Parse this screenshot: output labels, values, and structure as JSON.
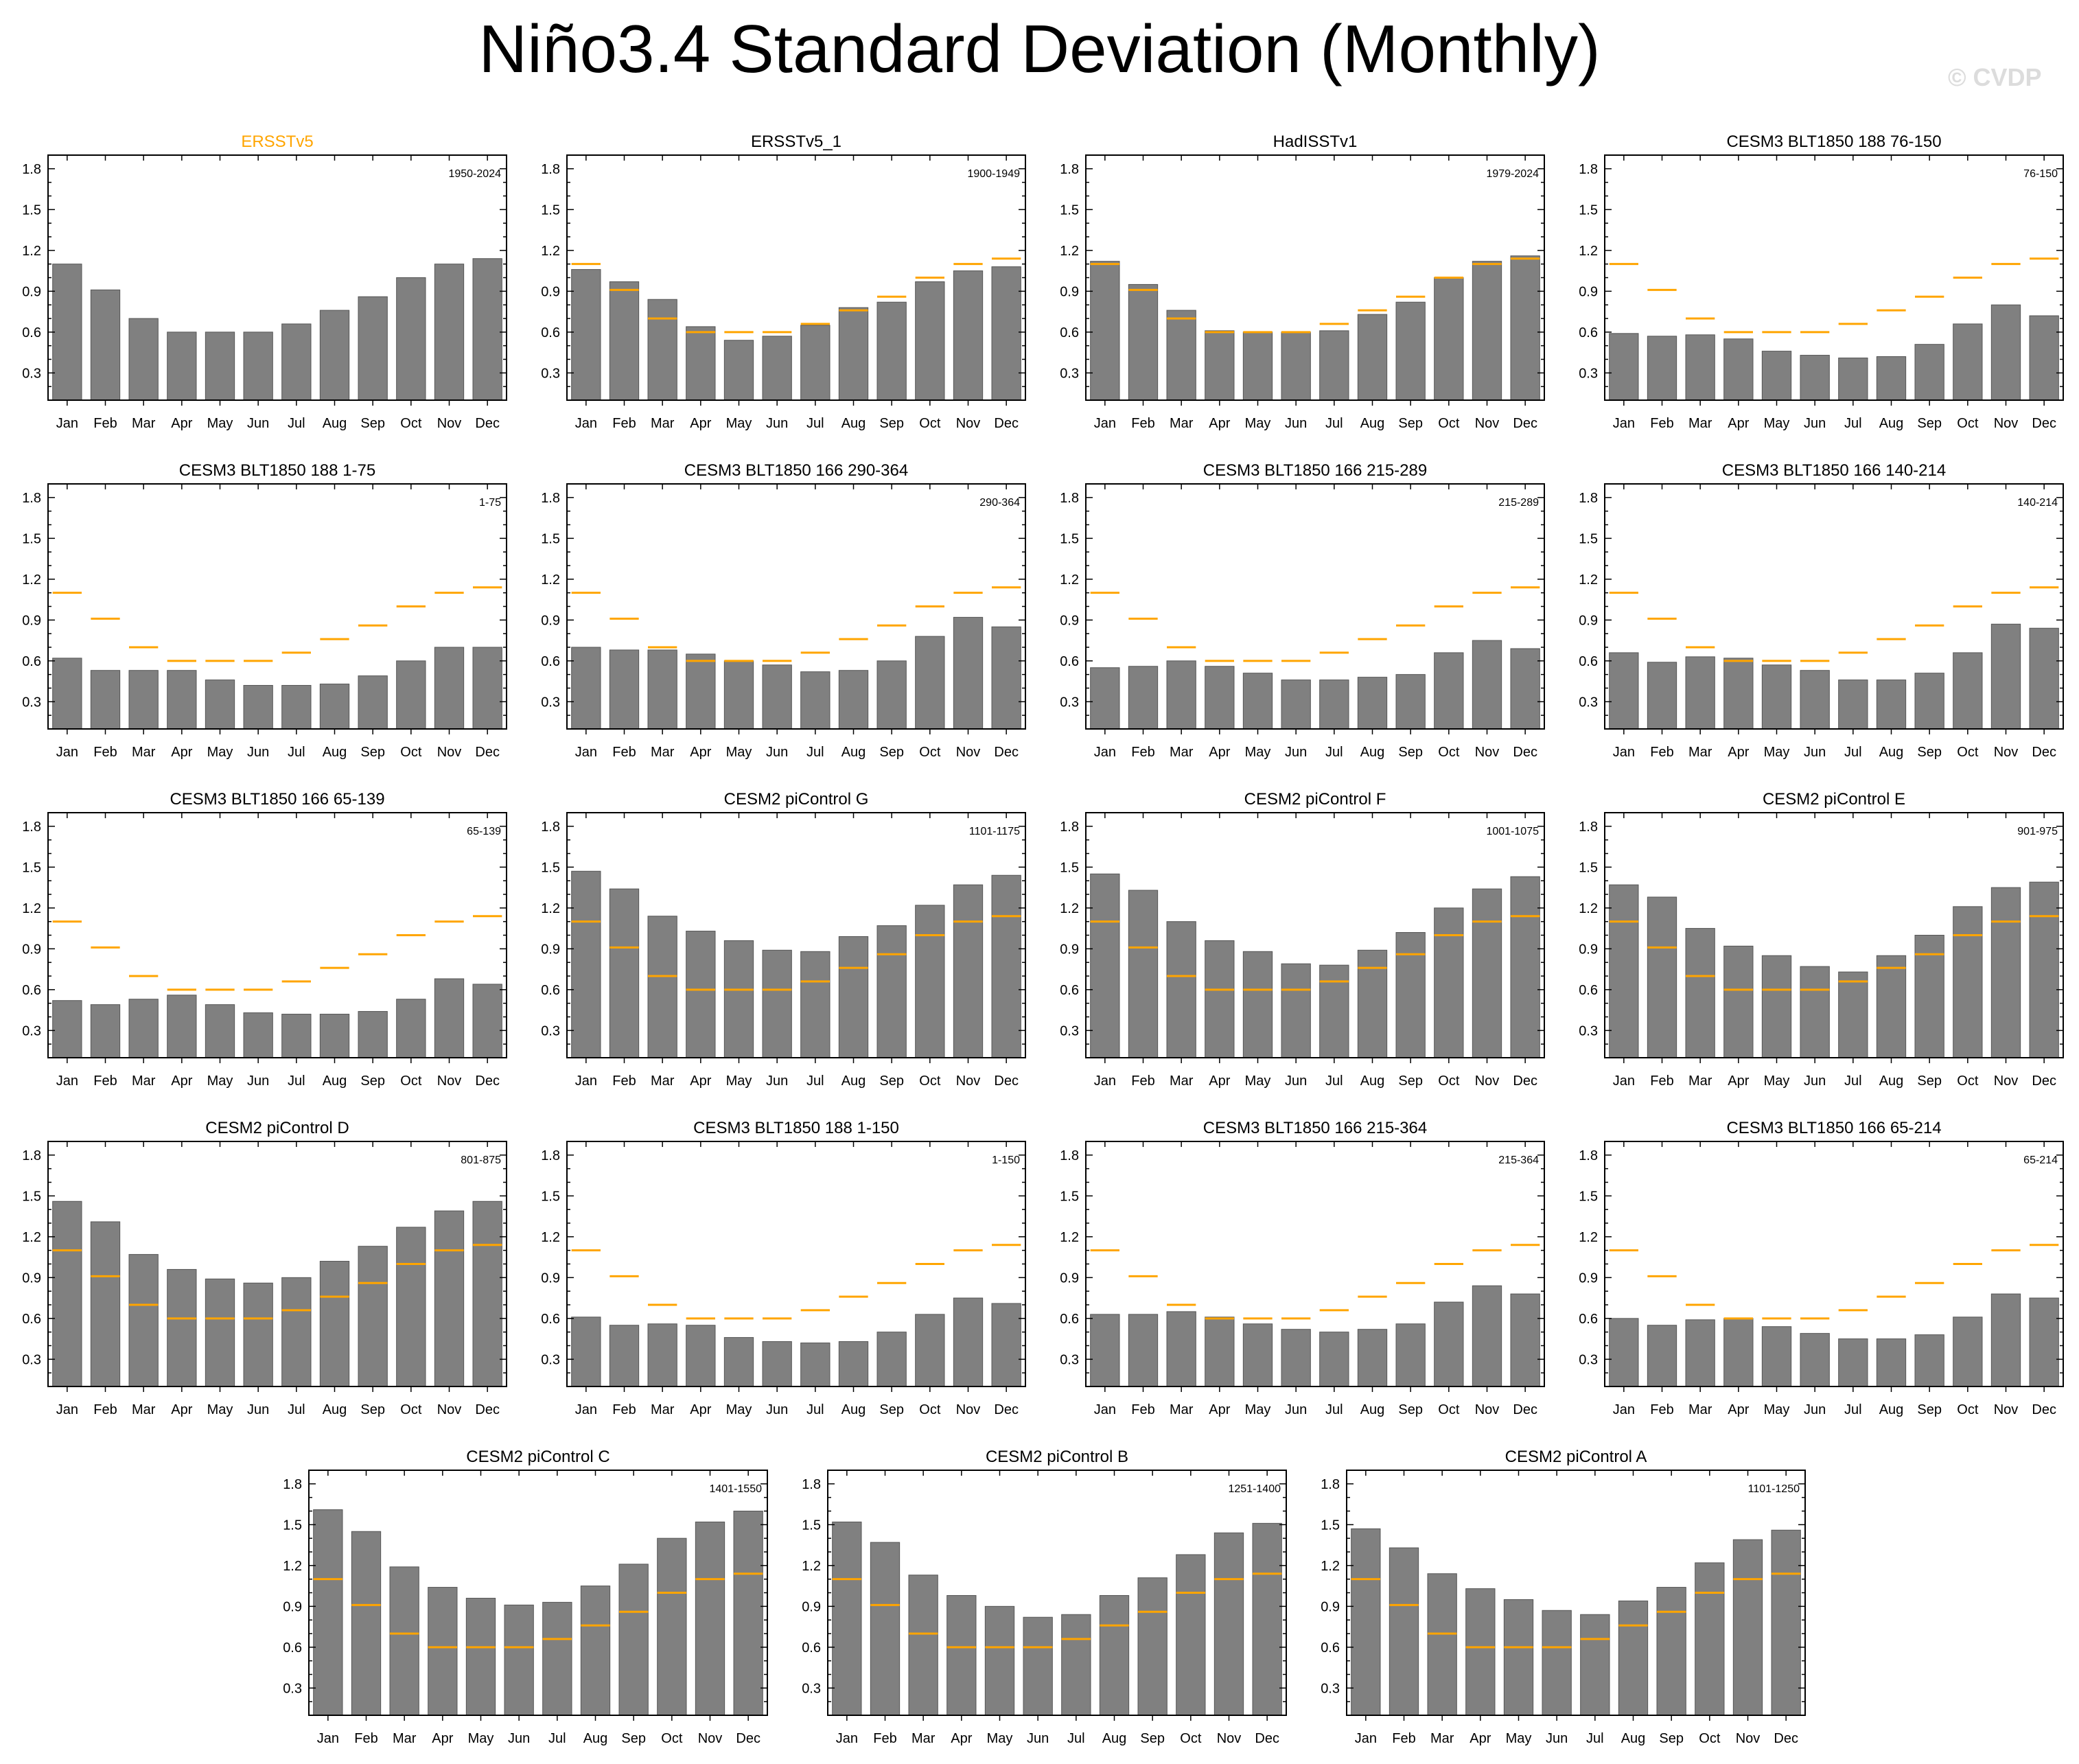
{
  "title": "Niño3.4 Standard Deviation (Monthly)",
  "watermark": "© CVDP",
  "colors": {
    "bar": "#808080",
    "bar_edge": "#555555",
    "obs_line": "#ffa500",
    "obs_title": "#ffa500",
    "text": "#000000"
  },
  "chart_data": [
    {
      "type": "bar",
      "title": "ERSSTv5",
      "subtitle": "1950-2024",
      "title_color": "obs",
      "categories": [
        "Jan",
        "Feb",
        "Mar",
        "Apr",
        "May",
        "Jun",
        "Jul",
        "Aug",
        "Sep",
        "Oct",
        "Nov",
        "Dec"
      ],
      "values": [
        1.1,
        0.91,
        0.7,
        0.6,
        0.6,
        0.6,
        0.66,
        0.76,
        0.86,
        1.0,
        1.1,
        1.14
      ],
      "reference": [],
      "yticks": [
        "0.3",
        "0.6",
        "0.9",
        "1.2",
        "1.5",
        "1.8"
      ],
      "ylim": [
        0.1,
        1.9
      ]
    },
    {
      "type": "bar",
      "title": "ERSSTv5_1",
      "subtitle": "1900-1949",
      "categories": [
        "Jan",
        "Feb",
        "Mar",
        "Apr",
        "May",
        "Jun",
        "Jul",
        "Aug",
        "Sep",
        "Oct",
        "Nov",
        "Dec"
      ],
      "values": [
        1.06,
        0.97,
        0.84,
        0.64,
        0.54,
        0.57,
        0.65,
        0.78,
        0.82,
        0.97,
        1.05,
        1.08
      ],
      "reference": [
        1.1,
        0.91,
        0.7,
        0.6,
        0.6,
        0.6,
        0.66,
        0.76,
        0.86,
        1.0,
        1.1,
        1.14
      ],
      "yticks": [
        "0.3",
        "0.6",
        "0.9",
        "1.2",
        "1.5",
        "1.8"
      ],
      "ylim": [
        0.1,
        1.9
      ]
    },
    {
      "type": "bar",
      "title": "HadISSTv1",
      "subtitle": "1979-2024",
      "categories": [
        "Jan",
        "Feb",
        "Mar",
        "Apr",
        "May",
        "Jun",
        "Jul",
        "Aug",
        "Sep",
        "Oct",
        "Nov",
        "Dec"
      ],
      "values": [
        1.12,
        0.95,
        0.76,
        0.61,
        0.6,
        0.6,
        0.61,
        0.73,
        0.82,
        1.0,
        1.12,
        1.16
      ],
      "reference": [
        1.1,
        0.91,
        0.7,
        0.6,
        0.6,
        0.6,
        0.66,
        0.76,
        0.86,
        1.0,
        1.1,
        1.14
      ],
      "yticks": [
        "0.3",
        "0.6",
        "0.9",
        "1.2",
        "1.5",
        "1.8"
      ],
      "ylim": [
        0.1,
        1.9
      ]
    },
    {
      "type": "bar",
      "title": "CESM3 BLT1850 188 76-150",
      "subtitle": "76-150",
      "categories": [
        "Jan",
        "Feb",
        "Mar",
        "Apr",
        "May",
        "Jun",
        "Jul",
        "Aug",
        "Sep",
        "Oct",
        "Nov",
        "Dec"
      ],
      "values": [
        0.59,
        0.57,
        0.58,
        0.55,
        0.46,
        0.43,
        0.41,
        0.42,
        0.51,
        0.66,
        0.8,
        0.72
      ],
      "reference": [
        1.1,
        0.91,
        0.7,
        0.6,
        0.6,
        0.6,
        0.66,
        0.76,
        0.86,
        1.0,
        1.1,
        1.14
      ],
      "yticks": [
        "0.3",
        "0.6",
        "0.9",
        "1.2",
        "1.5",
        "1.8"
      ],
      "ylim": [
        0.1,
        1.9
      ]
    },
    {
      "type": "bar",
      "title": "CESM3 BLT1850 188 1-75",
      "subtitle": "1-75",
      "categories": [
        "Jan",
        "Feb",
        "Mar",
        "Apr",
        "May",
        "Jun",
        "Jul",
        "Aug",
        "Sep",
        "Oct",
        "Nov",
        "Dec"
      ],
      "values": [
        0.62,
        0.53,
        0.53,
        0.53,
        0.46,
        0.42,
        0.42,
        0.43,
        0.49,
        0.6,
        0.7,
        0.7
      ],
      "reference": [
        1.1,
        0.91,
        0.7,
        0.6,
        0.6,
        0.6,
        0.66,
        0.76,
        0.86,
        1.0,
        1.1,
        1.14
      ],
      "yticks": [
        "0.3",
        "0.6",
        "0.9",
        "1.2",
        "1.5",
        "1.8"
      ],
      "ylim": [
        0.1,
        1.9
      ]
    },
    {
      "type": "bar",
      "title": "CESM3 BLT1850 166 290-364",
      "subtitle": "290-364",
      "categories": [
        "Jan",
        "Feb",
        "Mar",
        "Apr",
        "May",
        "Jun",
        "Jul",
        "Aug",
        "Sep",
        "Oct",
        "Nov",
        "Dec"
      ],
      "values": [
        0.7,
        0.68,
        0.68,
        0.65,
        0.6,
        0.57,
        0.52,
        0.53,
        0.6,
        0.78,
        0.92,
        0.85
      ],
      "reference": [
        1.1,
        0.91,
        0.7,
        0.6,
        0.6,
        0.6,
        0.66,
        0.76,
        0.86,
        1.0,
        1.1,
        1.14
      ],
      "yticks": [
        "0.3",
        "0.6",
        "0.9",
        "1.2",
        "1.5",
        "1.8"
      ],
      "ylim": [
        0.1,
        1.9
      ]
    },
    {
      "type": "bar",
      "title": "CESM3 BLT1850 166 215-289",
      "subtitle": "215-289",
      "categories": [
        "Jan",
        "Feb",
        "Mar",
        "Apr",
        "May",
        "Jun",
        "Jul",
        "Aug",
        "Sep",
        "Oct",
        "Nov",
        "Dec"
      ],
      "values": [
        0.55,
        0.56,
        0.6,
        0.56,
        0.51,
        0.46,
        0.46,
        0.48,
        0.5,
        0.66,
        0.75,
        0.69
      ],
      "reference": [
        1.1,
        0.91,
        0.7,
        0.6,
        0.6,
        0.6,
        0.66,
        0.76,
        0.86,
        1.0,
        1.1,
        1.14
      ],
      "yticks": [
        "0.3",
        "0.6",
        "0.9",
        "1.2",
        "1.5",
        "1.8"
      ],
      "ylim": [
        0.1,
        1.9
      ]
    },
    {
      "type": "bar",
      "title": "CESM3 BLT1850 166 140-214",
      "subtitle": "140-214",
      "categories": [
        "Jan",
        "Feb",
        "Mar",
        "Apr",
        "May",
        "Jun",
        "Jul",
        "Aug",
        "Sep",
        "Oct",
        "Nov",
        "Dec"
      ],
      "values": [
        0.66,
        0.59,
        0.63,
        0.62,
        0.57,
        0.53,
        0.46,
        0.46,
        0.51,
        0.66,
        0.87,
        0.84
      ],
      "reference": [
        1.1,
        0.91,
        0.7,
        0.6,
        0.6,
        0.6,
        0.66,
        0.76,
        0.86,
        1.0,
        1.1,
        1.14
      ],
      "yticks": [
        "0.3",
        "0.6",
        "0.9",
        "1.2",
        "1.5",
        "1.8"
      ],
      "ylim": [
        0.1,
        1.9
      ]
    },
    {
      "type": "bar",
      "title": "CESM3 BLT1850 166 65-139",
      "subtitle": "65-139",
      "categories": [
        "Jan",
        "Feb",
        "Mar",
        "Apr",
        "May",
        "Jun",
        "Jul",
        "Aug",
        "Sep",
        "Oct",
        "Nov",
        "Dec"
      ],
      "values": [
        0.52,
        0.49,
        0.53,
        0.56,
        0.49,
        0.43,
        0.42,
        0.42,
        0.44,
        0.53,
        0.68,
        0.64
      ],
      "reference": [
        1.1,
        0.91,
        0.7,
        0.6,
        0.6,
        0.6,
        0.66,
        0.76,
        0.86,
        1.0,
        1.1,
        1.14
      ],
      "yticks": [
        "0.3",
        "0.6",
        "0.9",
        "1.2",
        "1.5",
        "1.8"
      ],
      "ylim": [
        0.1,
        1.9
      ]
    },
    {
      "type": "bar",
      "title": "CESM2 piControl G",
      "subtitle": "1101-1175",
      "categories": [
        "Jan",
        "Feb",
        "Mar",
        "Apr",
        "May",
        "Jun",
        "Jul",
        "Aug",
        "Sep",
        "Oct",
        "Nov",
        "Dec"
      ],
      "values": [
        1.47,
        1.34,
        1.14,
        1.03,
        0.96,
        0.89,
        0.88,
        0.99,
        1.07,
        1.22,
        1.37,
        1.44
      ],
      "reference": [
        1.1,
        0.91,
        0.7,
        0.6,
        0.6,
        0.6,
        0.66,
        0.76,
        0.86,
        1.0,
        1.1,
        1.14
      ],
      "yticks": [
        "0.3",
        "0.6",
        "0.9",
        "1.2",
        "1.5",
        "1.8"
      ],
      "ylim": [
        0.1,
        1.9
      ]
    },
    {
      "type": "bar",
      "title": "CESM2 piControl F",
      "subtitle": "1001-1075",
      "categories": [
        "Jan",
        "Feb",
        "Mar",
        "Apr",
        "May",
        "Jun",
        "Jul",
        "Aug",
        "Sep",
        "Oct",
        "Nov",
        "Dec"
      ],
      "values": [
        1.45,
        1.33,
        1.1,
        0.96,
        0.88,
        0.79,
        0.78,
        0.89,
        1.02,
        1.2,
        1.34,
        1.43
      ],
      "reference": [
        1.1,
        0.91,
        0.7,
        0.6,
        0.6,
        0.6,
        0.66,
        0.76,
        0.86,
        1.0,
        1.1,
        1.14
      ],
      "yticks": [
        "0.3",
        "0.6",
        "0.9",
        "1.2",
        "1.5",
        "1.8"
      ],
      "ylim": [
        0.1,
        1.9
      ]
    },
    {
      "type": "bar",
      "title": "CESM2 piControl E",
      "subtitle": "901-975",
      "categories": [
        "Jan",
        "Feb",
        "Mar",
        "Apr",
        "May",
        "Jun",
        "Jul",
        "Aug",
        "Sep",
        "Oct",
        "Nov",
        "Dec"
      ],
      "values": [
        1.37,
        1.28,
        1.05,
        0.92,
        0.85,
        0.77,
        0.73,
        0.85,
        1.0,
        1.21,
        1.35,
        1.39
      ],
      "reference": [
        1.1,
        0.91,
        0.7,
        0.6,
        0.6,
        0.6,
        0.66,
        0.76,
        0.86,
        1.0,
        1.1,
        1.14
      ],
      "yticks": [
        "0.3",
        "0.6",
        "0.9",
        "1.2",
        "1.5",
        "1.8"
      ],
      "ylim": [
        0.1,
        1.9
      ]
    },
    {
      "type": "bar",
      "title": "CESM2 piControl D",
      "subtitle": "801-875",
      "categories": [
        "Jan",
        "Feb",
        "Mar",
        "Apr",
        "May",
        "Jun",
        "Jul",
        "Aug",
        "Sep",
        "Oct",
        "Nov",
        "Dec"
      ],
      "values": [
        1.46,
        1.31,
        1.07,
        0.96,
        0.89,
        0.86,
        0.9,
        1.02,
        1.13,
        1.27,
        1.39,
        1.46
      ],
      "reference": [
        1.1,
        0.91,
        0.7,
        0.6,
        0.6,
        0.6,
        0.66,
        0.76,
        0.86,
        1.0,
        1.1,
        1.14
      ],
      "yticks": [
        "0.3",
        "0.6",
        "0.9",
        "1.2",
        "1.5",
        "1.8"
      ],
      "ylim": [
        0.1,
        1.9
      ]
    },
    {
      "type": "bar",
      "title": "CESM3 BLT1850 188 1-150",
      "subtitle": "1-150",
      "categories": [
        "Jan",
        "Feb",
        "Mar",
        "Apr",
        "May",
        "Jun",
        "Jul",
        "Aug",
        "Sep",
        "Oct",
        "Nov",
        "Dec"
      ],
      "values": [
        0.61,
        0.55,
        0.56,
        0.55,
        0.46,
        0.43,
        0.42,
        0.43,
        0.5,
        0.63,
        0.75,
        0.71
      ],
      "reference": [
        1.1,
        0.91,
        0.7,
        0.6,
        0.6,
        0.6,
        0.66,
        0.76,
        0.86,
        1.0,
        1.1,
        1.14
      ],
      "yticks": [
        "0.3",
        "0.6",
        "0.9",
        "1.2",
        "1.5",
        "1.8"
      ],
      "ylim": [
        0.1,
        1.9
      ]
    },
    {
      "type": "bar",
      "title": "CESM3 BLT1850 166 215-364",
      "subtitle": "215-364",
      "categories": [
        "Jan",
        "Feb",
        "Mar",
        "Apr",
        "May",
        "Jun",
        "Jul",
        "Aug",
        "Sep",
        "Oct",
        "Nov",
        "Dec"
      ],
      "values": [
        0.63,
        0.63,
        0.65,
        0.61,
        0.56,
        0.52,
        0.5,
        0.52,
        0.56,
        0.72,
        0.84,
        0.78
      ],
      "reference": [
        1.1,
        0.91,
        0.7,
        0.6,
        0.6,
        0.6,
        0.66,
        0.76,
        0.86,
        1.0,
        1.1,
        1.14
      ],
      "yticks": [
        "0.3",
        "0.6",
        "0.9",
        "1.2",
        "1.5",
        "1.8"
      ],
      "ylim": [
        0.1,
        1.9
      ]
    },
    {
      "type": "bar",
      "title": "CESM3 BLT1850 166 65-214",
      "subtitle": "65-214",
      "categories": [
        "Jan",
        "Feb",
        "Mar",
        "Apr",
        "May",
        "Jun",
        "Jul",
        "Aug",
        "Sep",
        "Oct",
        "Nov",
        "Dec"
      ],
      "values": [
        0.6,
        0.55,
        0.59,
        0.6,
        0.54,
        0.49,
        0.45,
        0.45,
        0.48,
        0.61,
        0.78,
        0.75
      ],
      "reference": [
        1.1,
        0.91,
        0.7,
        0.6,
        0.6,
        0.6,
        0.66,
        0.76,
        0.86,
        1.0,
        1.1,
        1.14
      ],
      "yticks": [
        "0.3",
        "0.6",
        "0.9",
        "1.2",
        "1.5",
        "1.8"
      ],
      "ylim": [
        0.1,
        1.9
      ]
    },
    {
      "type": "bar",
      "title": "CESM2 piControl C",
      "subtitle": "1401-1550",
      "categories": [
        "Jan",
        "Feb",
        "Mar",
        "Apr",
        "May",
        "Jun",
        "Jul",
        "Aug",
        "Sep",
        "Oct",
        "Nov",
        "Dec"
      ],
      "values": [
        1.61,
        1.45,
        1.19,
        1.04,
        0.96,
        0.91,
        0.93,
        1.05,
        1.21,
        1.4,
        1.52,
        1.6
      ],
      "reference": [
        1.1,
        0.91,
        0.7,
        0.6,
        0.6,
        0.6,
        0.66,
        0.76,
        0.86,
        1.0,
        1.1,
        1.14
      ],
      "yticks": [
        "0.3",
        "0.6",
        "0.9",
        "1.2",
        "1.5",
        "1.8"
      ],
      "ylim": [
        0.1,
        1.9
      ]
    },
    {
      "type": "bar",
      "title": "CESM2 piControl B",
      "subtitle": "1251-1400",
      "categories": [
        "Jan",
        "Feb",
        "Mar",
        "Apr",
        "May",
        "Jun",
        "Jul",
        "Aug",
        "Sep",
        "Oct",
        "Nov",
        "Dec"
      ],
      "values": [
        1.52,
        1.37,
        1.13,
        0.98,
        0.9,
        0.82,
        0.84,
        0.98,
        1.11,
        1.28,
        1.44,
        1.51
      ],
      "reference": [
        1.1,
        0.91,
        0.7,
        0.6,
        0.6,
        0.6,
        0.66,
        0.76,
        0.86,
        1.0,
        1.1,
        1.14
      ],
      "yticks": [
        "0.3",
        "0.6",
        "0.9",
        "1.2",
        "1.5",
        "1.8"
      ],
      "ylim": [
        0.1,
        1.9
      ]
    },
    {
      "type": "bar",
      "title": "CESM2 piControl A",
      "subtitle": "1101-1250",
      "categories": [
        "Jan",
        "Feb",
        "Mar",
        "Apr",
        "May",
        "Jun",
        "Jul",
        "Aug",
        "Sep",
        "Oct",
        "Nov",
        "Dec"
      ],
      "values": [
        1.47,
        1.33,
        1.14,
        1.03,
        0.95,
        0.87,
        0.84,
        0.94,
        1.04,
        1.22,
        1.39,
        1.46
      ],
      "reference": [
        1.1,
        0.91,
        0.7,
        0.6,
        0.6,
        0.6,
        0.66,
        0.76,
        0.86,
        1.0,
        1.1,
        1.14
      ],
      "yticks": [
        "0.3",
        "0.6",
        "0.9",
        "1.2",
        "1.5",
        "1.8"
      ],
      "ylim": [
        0.1,
        1.9
      ]
    }
  ]
}
